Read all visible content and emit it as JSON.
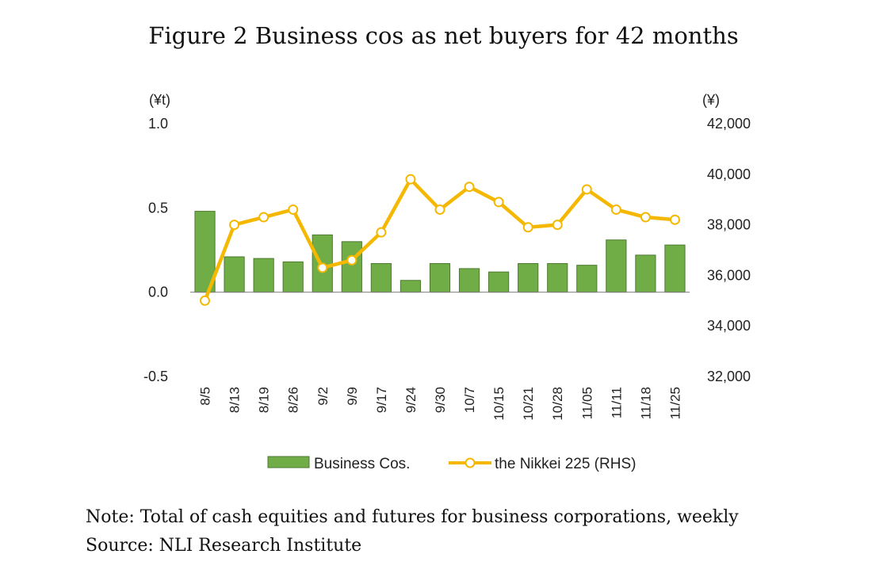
{
  "title": "Figure 2 Business cos as net buyers for 42 months",
  "note": "Note: Total of cash equities and futures for business corporations, weekly",
  "source": "Source: NLI Research Institute",
  "colors": {
    "bar": "#70ad47",
    "bar_stroke": "#4e7a30",
    "line": "#f5b800",
    "marker_fill": "#ffffff"
  },
  "chart_data": {
    "type": "bar",
    "categories": [
      "8/5",
      "8/13",
      "8/19",
      "8/26",
      "9/2",
      "9/9",
      "9/17",
      "9/24",
      "9/30",
      "10/7",
      "10/15",
      "10/21",
      "10/28",
      "11/05",
      "11/11",
      "11/18",
      "11/25"
    ],
    "series": [
      {
        "name": "Business Cos.",
        "axis": "left",
        "values": [
          0.48,
          0.21,
          0.2,
          0.18,
          0.34,
          0.3,
          0.17,
          0.07,
          0.17,
          0.14,
          0.12,
          0.17,
          0.17,
          0.16,
          0.31,
          0.22,
          0.28
        ]
      },
      {
        "name": "the Nikkei 225 (RHS)",
        "axis": "right",
        "type": "line",
        "values": [
          35000,
          38000,
          38300,
          38600,
          36300,
          36600,
          37700,
          39800,
          38600,
          39500,
          38900,
          37900,
          38000,
          39400,
          38600,
          38300,
          38200
        ]
      }
    ],
    "left_axis": {
      "unit": "(¥t)",
      "ylim": [
        -0.5,
        1.0
      ],
      "ticks": [
        1.0,
        0.5,
        0.0,
        -0.5
      ],
      "tick_labels": [
        "1.0",
        "0.5",
        "0.0",
        "-0.5"
      ]
    },
    "right_axis": {
      "unit": "(¥)",
      "ylim": [
        32000,
        42000
      ],
      "ticks": [
        42000,
        40000,
        38000,
        36000,
        34000,
        32000
      ],
      "tick_labels": [
        "42,000",
        "40,000",
        "38,000",
        "36,000",
        "34,000",
        "32,000"
      ]
    },
    "grid": false,
    "legend": "bottom"
  }
}
